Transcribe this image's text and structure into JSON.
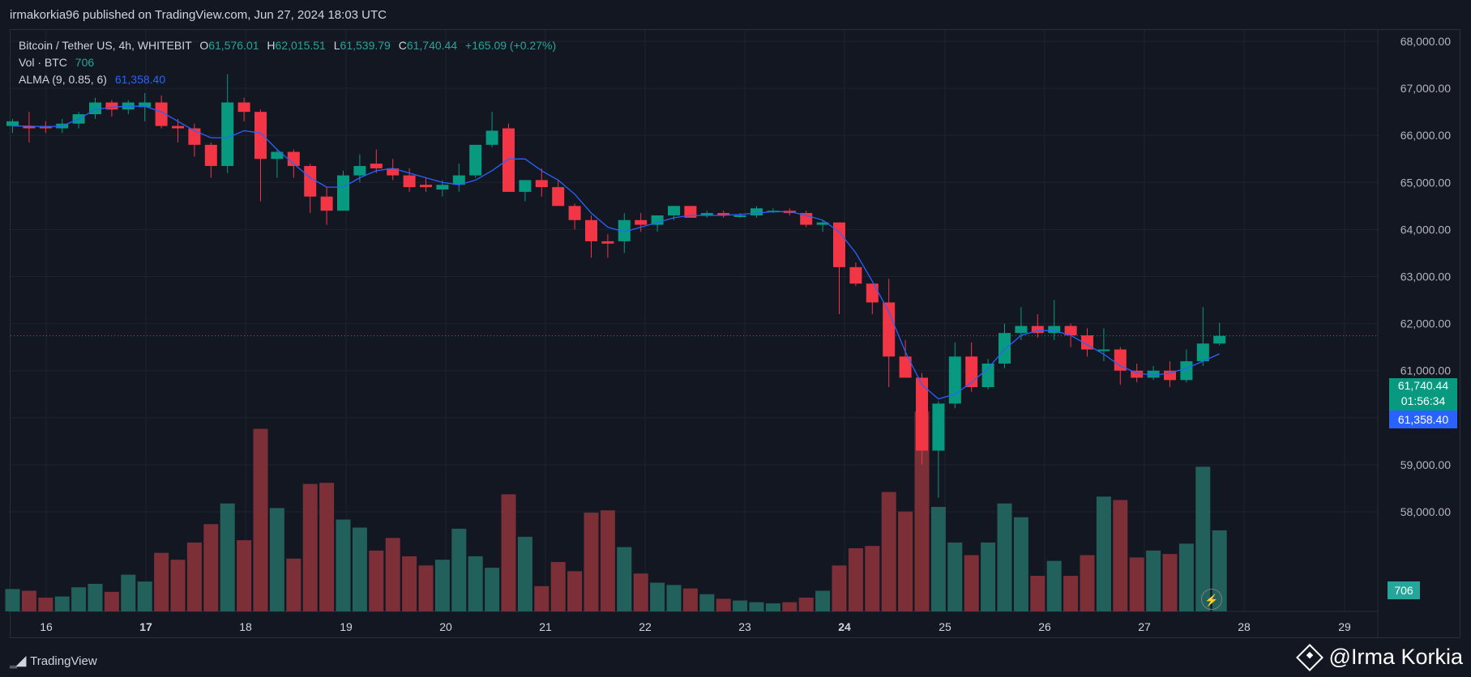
{
  "header": {
    "published": "irmakorkia96 published on TradingView.com, Jun 27, 2024 18:03 UTC"
  },
  "legend": {
    "symbol": "Bitcoin / Tether US, 4h, WHITEBIT",
    "o_label": "O",
    "o": "61,576.01",
    "h_label": "H",
    "h": "62,015.51",
    "l_label": "L",
    "l": "61,539.79",
    "c_label": "C",
    "c": "61,740.44",
    "change": "+165.09 (+0.27%)",
    "vol_label": "Vol · BTC",
    "vol": "706",
    "alma_label": "ALMA (9, 0.85, 6)",
    "alma": "61,358.40"
  },
  "price_tags": {
    "close": "61,740.44",
    "countdown": "01:56:34",
    "alma": "61,358.40",
    "volume": "706"
  },
  "footer": {
    "brand": "TradingView",
    "watermark": "@Irma Korkia"
  },
  "colors": {
    "up": "#089981",
    "down": "#f23645",
    "up_vol": "#22605c",
    "down_vol": "#7c2f36",
    "alma": "#2962ff",
    "bg": "#131722",
    "grid": "#1f2330"
  },
  "icons": {
    "lightning": "lightning-icon",
    "tv_logo": "tradingview-logo-icon",
    "watermark": "binance-diamond-icon"
  },
  "chart_data": {
    "type": "candlestick",
    "title": "Bitcoin / Tether US, 4h, WHITEBIT",
    "y_ticks": [
      "68,000.00",
      "67,000.00",
      "66,000.00",
      "65,000.00",
      "64,000.00",
      "63,000.00",
      "62,000.00",
      "61,000.00",
      "60,000.00",
      "59,000.00",
      "58,000.00"
    ],
    "y_tick_values": [
      68000,
      67000,
      66000,
      65000,
      64000,
      63000,
      62000,
      61000,
      60000,
      59000,
      58000
    ],
    "x_ticks": [
      "16",
      "17",
      "18",
      "19",
      "20",
      "21",
      "22",
      "23",
      "24",
      "25",
      "26",
      "27",
      "28",
      "29"
    ],
    "ylim": [
      57700,
      68300
    ],
    "candles": [
      {
        "o": 66200,
        "h": 66350,
        "l": 66050,
        "c": 66300
      },
      {
        "o": 66200,
        "h": 66500,
        "l": 65850,
        "c": 66150
      },
      {
        "o": 66200,
        "h": 66300,
        "l": 66050,
        "c": 66150
      },
      {
        "o": 66150,
        "h": 66350,
        "l": 66050,
        "c": 66250
      },
      {
        "o": 66250,
        "h": 66500,
        "l": 66150,
        "c": 66450
      },
      {
        "o": 66450,
        "h": 66800,
        "l": 66350,
        "c": 66700
      },
      {
        "o": 66700,
        "h": 66750,
        "l": 66400,
        "c": 66550
      },
      {
        "o": 66550,
        "h": 66750,
        "l": 66450,
        "c": 66700
      },
      {
        "o": 66600,
        "h": 66900,
        "l": 66300,
        "c": 66700
      },
      {
        "o": 66700,
        "h": 66850,
        "l": 66150,
        "c": 66200
      },
      {
        "o": 66200,
        "h": 66350,
        "l": 65850,
        "c": 66150
      },
      {
        "o": 66150,
        "h": 66250,
        "l": 65550,
        "c": 65800
      },
      {
        "o": 65800,
        "h": 65850,
        "l": 65100,
        "c": 65350
      },
      {
        "o": 65350,
        "h": 67300,
        "l": 65200,
        "c": 66700
      },
      {
        "o": 66700,
        "h": 66800,
        "l": 66300,
        "c": 66500
      },
      {
        "o": 66500,
        "h": 66550,
        "l": 64600,
        "c": 65500
      },
      {
        "o": 65500,
        "h": 65700,
        "l": 65100,
        "c": 65650
      },
      {
        "o": 65650,
        "h": 65700,
        "l": 65100,
        "c": 65350
      },
      {
        "o": 65350,
        "h": 65400,
        "l": 64350,
        "c": 64700
      },
      {
        "o": 64700,
        "h": 64900,
        "l": 64100,
        "c": 64400
      },
      {
        "o": 64400,
        "h": 65250,
        "l": 64400,
        "c": 65150
      },
      {
        "o": 65150,
        "h": 65600,
        "l": 65000,
        "c": 65350
      },
      {
        "o": 65400,
        "h": 65700,
        "l": 65200,
        "c": 65300
      },
      {
        "o": 65300,
        "h": 65500,
        "l": 65050,
        "c": 65150
      },
      {
        "o": 65150,
        "h": 65300,
        "l": 64800,
        "c": 64900
      },
      {
        "o": 64950,
        "h": 65100,
        "l": 64800,
        "c": 64900
      },
      {
        "o": 64850,
        "h": 65050,
        "l": 64700,
        "c": 64950
      },
      {
        "o": 64950,
        "h": 65400,
        "l": 64800,
        "c": 65150
      },
      {
        "o": 65150,
        "h": 65700,
        "l": 65100,
        "c": 65800
      },
      {
        "o": 65800,
        "h": 66500,
        "l": 65750,
        "c": 66100
      },
      {
        "o": 66150,
        "h": 66250,
        "l": 64800,
        "c": 64800
      },
      {
        "o": 64800,
        "h": 65000,
        "l": 64600,
        "c": 65050
      },
      {
        "o": 65050,
        "h": 65300,
        "l": 64700,
        "c": 64900
      },
      {
        "o": 64900,
        "h": 65050,
        "l": 64500,
        "c": 64500
      },
      {
        "o": 64500,
        "h": 64550,
        "l": 64000,
        "c": 64200
      },
      {
        "o": 64200,
        "h": 64300,
        "l": 63400,
        "c": 63750
      },
      {
        "o": 63750,
        "h": 63900,
        "l": 63400,
        "c": 63700
      },
      {
        "o": 63750,
        "h": 64350,
        "l": 63500,
        "c": 64200
      },
      {
        "o": 64200,
        "h": 64350,
        "l": 63950,
        "c": 64100
      },
      {
        "o": 64100,
        "h": 64300,
        "l": 63950,
        "c": 64300
      },
      {
        "o": 64300,
        "h": 64500,
        "l": 64200,
        "c": 64500
      },
      {
        "o": 64500,
        "h": 64500,
        "l": 64250,
        "c": 64250
      },
      {
        "o": 64300,
        "h": 64400,
        "l": 64250,
        "c": 64350
      },
      {
        "o": 64350,
        "h": 64400,
        "l": 64250,
        "c": 64300
      },
      {
        "o": 64300,
        "h": 64350,
        "l": 64250,
        "c": 64300
      },
      {
        "o": 64300,
        "h": 64500,
        "l": 64250,
        "c": 64450
      },
      {
        "o": 64400,
        "h": 64450,
        "l": 64350,
        "c": 64400
      },
      {
        "o": 64400,
        "h": 64450,
        "l": 64300,
        "c": 64350
      },
      {
        "o": 64350,
        "h": 64400,
        "l": 64050,
        "c": 64100
      },
      {
        "o": 64100,
        "h": 64200,
        "l": 63950,
        "c": 64150
      },
      {
        "o": 64150,
        "h": 64150,
        "l": 62200,
        "c": 63200
      },
      {
        "o": 63200,
        "h": 63300,
        "l": 62800,
        "c": 62850
      },
      {
        "o": 62850,
        "h": 62850,
        "l": 62200,
        "c": 62450
      },
      {
        "o": 62450,
        "h": 62950,
        "l": 60650,
        "c": 61300
      },
      {
        "o": 61300,
        "h": 61650,
        "l": 60900,
        "c": 60850
      },
      {
        "o": 60850,
        "h": 60950,
        "l": 59000,
        "c": 59300
      },
      {
        "o": 59300,
        "h": 60350,
        "l": 58300,
        "c": 60300
      },
      {
        "o": 60300,
        "h": 61600,
        "l": 60200,
        "c": 61300
      },
      {
        "o": 61300,
        "h": 61600,
        "l": 60550,
        "c": 60650
      },
      {
        "o": 60650,
        "h": 61250,
        "l": 60600,
        "c": 61150
      },
      {
        "o": 61150,
        "h": 62000,
        "l": 61050,
        "c": 61800
      },
      {
        "o": 61800,
        "h": 62350,
        "l": 61650,
        "c": 61950
      },
      {
        "o": 61950,
        "h": 62200,
        "l": 61700,
        "c": 61800
      },
      {
        "o": 61800,
        "h": 62500,
        "l": 61650,
        "c": 61950
      },
      {
        "o": 61950,
        "h": 62000,
        "l": 61500,
        "c": 61750
      },
      {
        "o": 61750,
        "h": 61900,
        "l": 61300,
        "c": 61450
      },
      {
        "o": 61450,
        "h": 61900,
        "l": 61200,
        "c": 61450
      },
      {
        "o": 61450,
        "h": 61500,
        "l": 60700,
        "c": 61000
      },
      {
        "o": 61000,
        "h": 61150,
        "l": 60750,
        "c": 60850
      },
      {
        "o": 60850,
        "h": 61100,
        "l": 60800,
        "c": 61000
      },
      {
        "o": 61000,
        "h": 61200,
        "l": 60650,
        "c": 60800
      },
      {
        "o": 60800,
        "h": 61450,
        "l": 60750,
        "c": 61200
      },
      {
        "o": 61200,
        "h": 62350,
        "l": 61100,
        "c": 61576
      },
      {
        "o": 61576.01,
        "h": 62015.51,
        "l": 61539.79,
        "c": 61740.44
      }
    ],
    "alma": [
      66200,
      66200,
      66180,
      66200,
      66350,
      66550,
      66600,
      66620,
      66620,
      66500,
      66300,
      66100,
      65950,
      65950,
      66100,
      66050,
      65700,
      65400,
      65100,
      64900,
      64900,
      65100,
      65250,
      65300,
      65200,
      65100,
      65000,
      64950,
      65050,
      65250,
      65500,
      65500,
      65250,
      65050,
      64750,
      64350,
      64050,
      63950,
      64050,
      64150,
      64250,
      64300,
      64300,
      64300,
      64320,
      64350,
      64380,
      64380,
      64300,
      64200,
      63950,
      63500,
      62900,
      62250,
      61400,
      60700,
      60400,
      60500,
      60750,
      61050,
      61450,
      61750,
      61850,
      61850,
      61750,
      61550,
      61350,
      61100,
      60950,
      60900,
      60950,
      61050,
      61200,
      61358.4
    ],
    "volume": [
      195,
      180,
      120,
      130,
      210,
      240,
      170,
      320,
      260,
      510,
      450,
      600,
      760,
      940,
      620,
      1590,
      900,
      460,
      1110,
      1120,
      800,
      730,
      530,
      640,
      480,
      400,
      450,
      720,
      480,
      380,
      1020,
      650,
      220,
      430,
      350,
      860,
      880,
      560,
      330,
      250,
      230,
      200,
      150,
      110,
      95,
      80,
      70,
      80,
      120,
      180,
      400,
      550,
      570,
      1040,
      870,
      1740,
      910,
      600,
      490,
      600,
      940,
      820,
      310,
      440,
      310,
      490,
      1000,
      970,
      470,
      530,
      500,
      590,
      1260,
      706
    ],
    "volume_max": 2130
  }
}
